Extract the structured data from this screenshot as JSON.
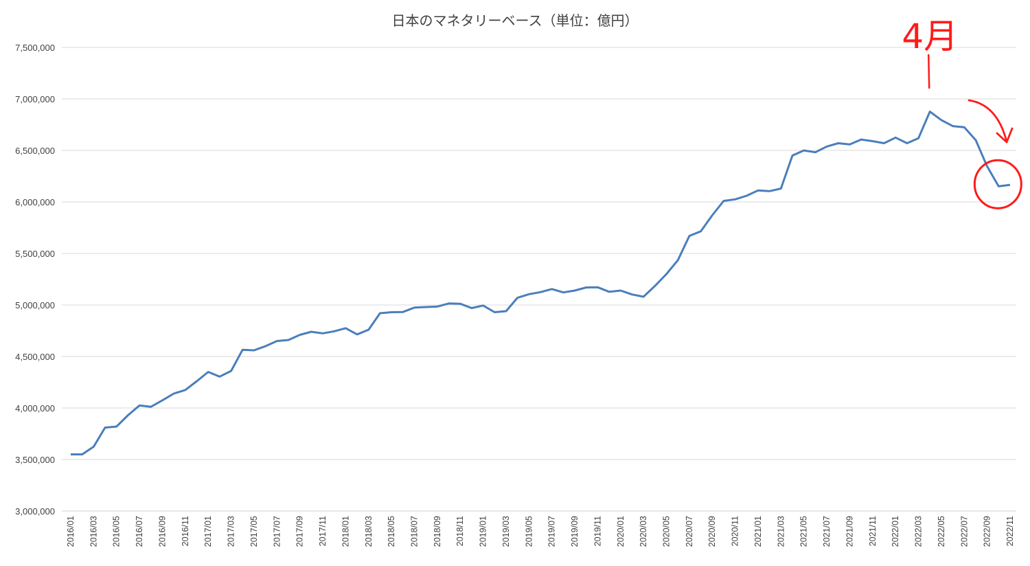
{
  "chart_data": {
    "type": "line",
    "title": "日本のマネタリーベース（単位：億円）",
    "xlabel": "",
    "ylabel": "",
    "ylim": [
      3000000,
      7500000
    ],
    "yticks": [
      "3,000,000",
      "3,500,000",
      "4,000,000",
      "4,500,000",
      "5,000,000",
      "5,500,000",
      "6,000,000",
      "6,500,000",
      "7,000,000",
      "7,500,000"
    ],
    "grid": "horizontal",
    "line_color": "#4a7ebb",
    "annotation_color": "#ff1a1a",
    "annotation_text": "4月",
    "annotation_month": "2022/04",
    "circled_month": "2022/10",
    "x": [
      "2016/01",
      "2016/02",
      "2016/03",
      "2016/04",
      "2016/05",
      "2016/06",
      "2016/07",
      "2016/08",
      "2016/09",
      "2016/10",
      "2016/11",
      "2016/12",
      "2017/01",
      "2017/02",
      "2017/03",
      "2017/04",
      "2017/05",
      "2017/06",
      "2017/07",
      "2017/08",
      "2017/09",
      "2017/10",
      "2017/11",
      "2017/12",
      "2018/01",
      "2018/02",
      "2018/03",
      "2018/04",
      "2018/05",
      "2018/06",
      "2018/07",
      "2018/08",
      "2018/09",
      "2018/10",
      "2018/11",
      "2018/12",
      "2019/01",
      "2019/02",
      "2019/03",
      "2019/04",
      "2019/05",
      "2019/06",
      "2019/07",
      "2019/08",
      "2019/09",
      "2019/10",
      "2019/11",
      "2019/12",
      "2020/01",
      "2020/02",
      "2020/03",
      "2020/04",
      "2020/05",
      "2020/06",
      "2020/07",
      "2020/08",
      "2020/09",
      "2020/10",
      "2020/11",
      "2020/12",
      "2021/01",
      "2021/02",
      "2021/03",
      "2021/04",
      "2021/05",
      "2021/06",
      "2021/07",
      "2021/08",
      "2021/09",
      "2021/10",
      "2021/11",
      "2021/12",
      "2022/01",
      "2022/02",
      "2022/03",
      "2022/04",
      "2022/05",
      "2022/06",
      "2022/07",
      "2022/08",
      "2022/09",
      "2022/10",
      "2022/11"
    ],
    "xtick_labels": [
      "2016/01",
      "2016/03",
      "2016/05",
      "2016/07",
      "2016/09",
      "2016/11",
      "2017/01",
      "2017/03",
      "2017/05",
      "2017/07",
      "2017/09",
      "2017/11",
      "2018/01",
      "2018/03",
      "2018/05",
      "2018/07",
      "2018/09",
      "2018/11",
      "2019/01",
      "2019/03",
      "2019/05",
      "2019/07",
      "2019/09",
      "2019/11",
      "2020/01",
      "2020/03",
      "2020/05",
      "2020/07",
      "2020/09",
      "2020/11",
      "2021/01",
      "2021/03",
      "2021/05",
      "2021/07",
      "2021/09",
      "2021/11",
      "2022/01",
      "2022/03",
      "2022/05",
      "2022/07",
      "2022/09",
      "2022/11"
    ],
    "values": [
      3550000,
      3550000,
      3625000,
      3810000,
      3820000,
      3930000,
      4025000,
      4012000,
      4075000,
      4140000,
      4175000,
      4260000,
      4350000,
      4305000,
      4360000,
      4565000,
      4560000,
      4600000,
      4650000,
      4660000,
      4710000,
      4740000,
      4725000,
      4745000,
      4775000,
      4715000,
      4760000,
      4920000,
      4930000,
      4932000,
      4975000,
      4980000,
      4985000,
      5015000,
      5012000,
      4970000,
      4995000,
      4930000,
      4940000,
      5070000,
      5105000,
      5125000,
      5155000,
      5122000,
      5140000,
      5170000,
      5172000,
      5128000,
      5140000,
      5102000,
      5080000,
      5185000,
      5300000,
      5435000,
      5670000,
      5715000,
      5870000,
      6010000,
      6025000,
      6060000,
      6112000,
      6105000,
      6130000,
      6450000,
      6500000,
      6482000,
      6538000,
      6570000,
      6558000,
      6606000,
      6590000,
      6570000,
      6625000,
      6570000,
      6618000,
      6877000,
      6795000,
      6736000,
      6725000,
      6600000,
      6345000,
      6152000,
      6166000
    ]
  }
}
